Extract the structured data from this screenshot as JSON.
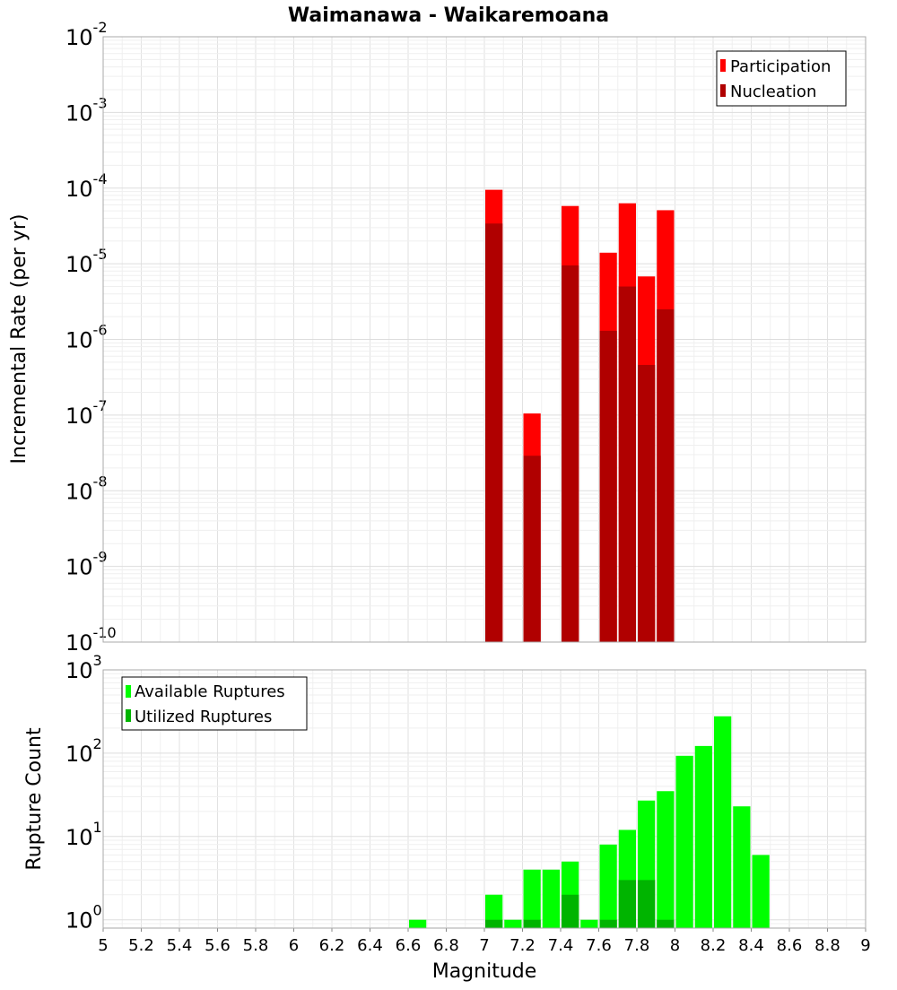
{
  "chart_data": [
    {
      "type": "bar",
      "scale": "log",
      "title": "Waimanawa - Waikaremoana",
      "xlabel": "",
      "ylabel": "Incremental Rate (per yr)",
      "xlim": [
        5,
        9
      ],
      "ylim_exponents": [
        -10,
        -2
      ],
      "y_tick_labels": [
        {
          "base": "10",
          "exp": "-10"
        },
        {
          "base": "10",
          "exp": "-9"
        },
        {
          "base": "10",
          "exp": "-8"
        },
        {
          "base": "10",
          "exp": "-7"
        },
        {
          "base": "10",
          "exp": "-6"
        },
        {
          "base": "10",
          "exp": "-5"
        },
        {
          "base": "10",
          "exp": "-4"
        },
        {
          "base": "10",
          "exp": "-3"
        },
        {
          "base": "10",
          "exp": "-2"
        }
      ],
      "legend": [
        "Participation",
        "Nucleation"
      ],
      "legend_position": "top-right",
      "series": [
        {
          "name": "Participation",
          "color": "#ff0000",
          "points": [
            [
              7.05,
              9.5e-05
            ],
            [
              7.25,
              1.05e-07
            ],
            [
              7.45,
              5.8e-05
            ],
            [
              7.65,
              1.4e-05
            ],
            [
              7.75,
              6.3e-05
            ],
            [
              7.85,
              6.8e-06
            ],
            [
              7.95,
              5.1e-05
            ]
          ]
        },
        {
          "name": "Nucleation",
          "color": "#b00000",
          "points": [
            [
              7.05,
              3.4e-05
            ],
            [
              7.25,
              2.9e-08
            ],
            [
              7.45,
              9.5e-06
            ],
            [
              7.65,
              1.3e-06
            ],
            [
              7.75,
              5e-06
            ],
            [
              7.85,
              4.6e-07
            ],
            [
              7.95,
              2.5e-06
            ]
          ]
        }
      ]
    },
    {
      "type": "bar",
      "scale": "log",
      "title": "",
      "xlabel": "Magnitude",
      "ylabel": "Rupture Count",
      "xlim": [
        5,
        9
      ],
      "ylim_exponents": [
        -0.1,
        3
      ],
      "x_ticks": [
        "5",
        "5.2",
        "5.4",
        "5.6",
        "5.8",
        "6",
        "6.2",
        "6.4",
        "6.6",
        "6.8",
        "7",
        "7.2",
        "7.4",
        "7.6",
        "7.8",
        "8",
        "8.2",
        "8.4",
        "8.6",
        "8.8",
        "9"
      ],
      "y_tick_labels": [
        {
          "base": "10",
          "exp": "0"
        },
        {
          "base": "10",
          "exp": "1"
        },
        {
          "base": "10",
          "exp": "2"
        },
        {
          "base": "10",
          "exp": "3"
        }
      ],
      "legend": [
        "Available Ruptures",
        "Utilized Ruptures"
      ],
      "legend_position": "top-left",
      "series": [
        {
          "name": "Available Ruptures",
          "color": "#00ff00",
          "points": [
            [
              6.65,
              1
            ],
            [
              7.05,
              2
            ],
            [
              7.15,
              1
            ],
            [
              7.25,
              4
            ],
            [
              7.35,
              4
            ],
            [
              7.45,
              5
            ],
            [
              7.55,
              1
            ],
            [
              7.65,
              8
            ],
            [
              7.75,
              12
            ],
            [
              7.85,
              27
            ],
            [
              7.95,
              35
            ],
            [
              8.05,
              93
            ],
            [
              8.15,
              122
            ],
            [
              8.25,
              277
            ],
            [
              8.35,
              23
            ],
            [
              8.45,
              6
            ]
          ]
        },
        {
          "name": "Utilized Ruptures",
          "color": "#00b400",
          "points": [
            [
              7.05,
              1
            ],
            [
              7.25,
              1
            ],
            [
              7.45,
              2
            ],
            [
              7.65,
              1
            ],
            [
              7.75,
              3
            ],
            [
              7.85,
              3
            ],
            [
              7.95,
              1
            ]
          ]
        }
      ]
    }
  ]
}
